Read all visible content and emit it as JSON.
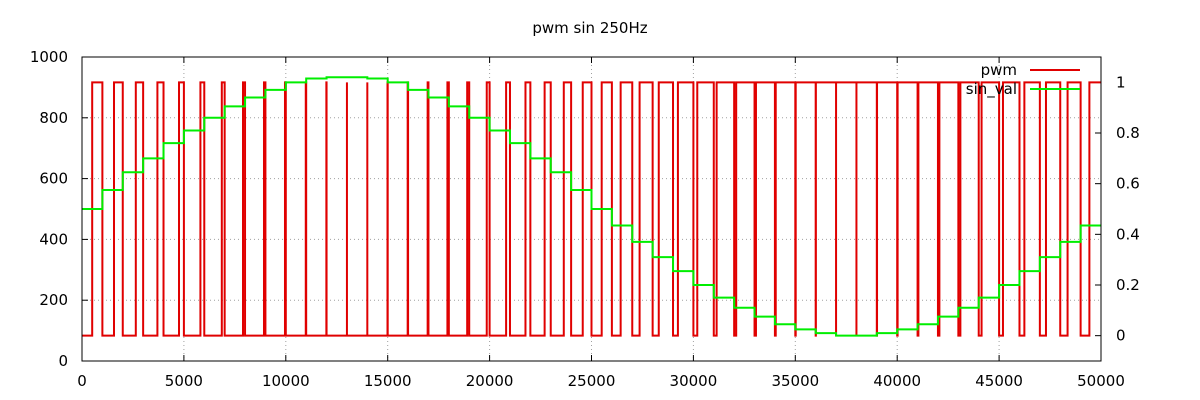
{
  "chart_data": {
    "type": "line",
    "title": "pwm sin 250Hz",
    "xlabel": "",
    "ylabel": "",
    "y2label": "",
    "xlim": [
      0,
      50000
    ],
    "ylim": [
      0,
      1000
    ],
    "y2lim": [
      -0.1,
      1.1
    ],
    "x_ticks": [
      0,
      5000,
      10000,
      15000,
      20000,
      25000,
      30000,
      35000,
      40000,
      45000,
      50000
    ],
    "y_ticks": [
      0,
      200,
      400,
      600,
      800,
      1000
    ],
    "y2_ticks": [
      0,
      0.2,
      0.4,
      0.6,
      0.8,
      1
    ],
    "grid": true,
    "legend_position": "top-right",
    "period": 1000,
    "pwm_high": 0,
    "pwm_low": 1,
    "series": [
      {
        "name": "pwm",
        "axis": "y2",
        "color": "#e00000",
        "style": "pwm",
        "duty": [
          0.5,
          0.57,
          0.64,
          0.7,
          0.76,
          0.81,
          0.86,
          0.9,
          0.93,
          0.96,
          0.98,
          0.99,
          1.0,
          1.0,
          0.99,
          0.98,
          0.96,
          0.93,
          0.9,
          0.86,
          0.81,
          0.76,
          0.7,
          0.64,
          0.57,
          0.5,
          0.43,
          0.36,
          0.3,
          0.24,
          0.19,
          0.14,
          0.1,
          0.07,
          0.04,
          0.02,
          0.01,
          0.0,
          0.0,
          0.01,
          0.02,
          0.04,
          0.07,
          0.1,
          0.14,
          0.19,
          0.24,
          0.3,
          0.36,
          0.43
        ]
      },
      {
        "name": "sin_val",
        "axis": "y2",
        "color": "#00ee00",
        "style": "steps",
        "x": [
          0,
          1000,
          2000,
          3000,
          4000,
          5000,
          6000,
          7000,
          8000,
          9000,
          10000,
          11000,
          12000,
          13000,
          14000,
          15000,
          16000,
          17000,
          18000,
          19000,
          20000,
          21000,
          22000,
          23000,
          24000,
          25000,
          26000,
          27000,
          28000,
          29000,
          30000,
          31000,
          32000,
          33000,
          34000,
          35000,
          36000,
          37000,
          38000,
          39000,
          40000,
          41000,
          42000,
          43000,
          44000,
          45000,
          46000,
          47000,
          48000,
          49000
        ],
        "values": [
          0.5,
          0.575,
          0.645,
          0.7,
          0.76,
          0.81,
          0.86,
          0.905,
          0.94,
          0.97,
          1.0,
          1.015,
          1.02,
          1.02,
          1.015,
          1.0,
          0.97,
          0.94,
          0.905,
          0.86,
          0.81,
          0.76,
          0.7,
          0.645,
          0.575,
          0.5,
          0.435,
          0.37,
          0.31,
          0.255,
          0.2,
          0.15,
          0.11,
          0.075,
          0.045,
          0.025,
          0.01,
          0.0,
          0.0,
          0.01,
          0.025,
          0.045,
          0.075,
          0.11,
          0.15,
          0.2,
          0.255,
          0.31,
          0.37,
          0.435
        ]
      }
    ]
  }
}
